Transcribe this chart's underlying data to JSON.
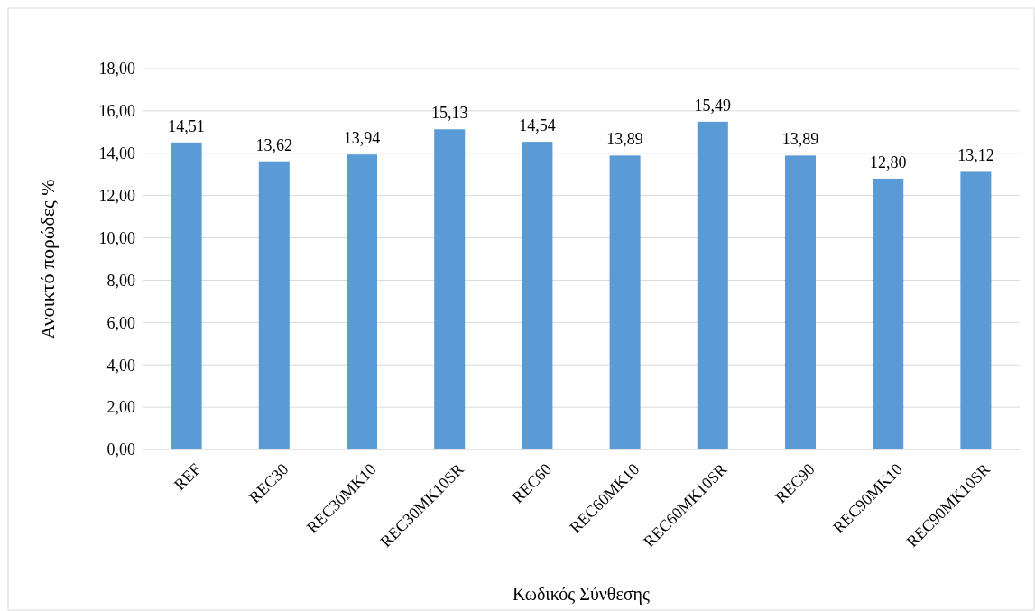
{
  "chart_data": {
    "type": "bar",
    "xlabel": "Κωδικός Σύνθεσης",
    "ylabel": "Ανοικτό πορώδες  %",
    "categories": [
      "REF",
      "REC30",
      "REC30MK10",
      "REC30MK10SR",
      "REC60",
      "REC60MK10",
      "REC60MK10SR",
      "REC90",
      "REC90MK10",
      "REC90MK10SR"
    ],
    "values": [
      14.51,
      13.62,
      13.94,
      15.13,
      14.54,
      13.89,
      15.49,
      13.89,
      12.8,
      13.12
    ],
    "value_labels": [
      "14,51",
      "13,62",
      "13,94",
      "15,13",
      "14,54",
      "13,89",
      "15,49",
      "13,89",
      "12,80",
      "13,12"
    ],
    "color": "#5b9bd5",
    "ylim": [
      0,
      18
    ],
    "yticks": [
      {
        "value": 0,
        "label": "0,00"
      },
      {
        "value": 2,
        "label": "2,00"
      },
      {
        "value": 4,
        "label": "4,00"
      },
      {
        "value": 6,
        "label": "6,00"
      },
      {
        "value": 8,
        "label": "8,00"
      },
      {
        "value": 10,
        "label": "10,00"
      },
      {
        "value": 12,
        "label": "12,00"
      },
      {
        "value": 14,
        "label": "14,00"
      },
      {
        "value": 16,
        "label": "16,00"
      },
      {
        "value": 18,
        "label": "18,00"
      }
    ],
    "grid": "y"
  }
}
